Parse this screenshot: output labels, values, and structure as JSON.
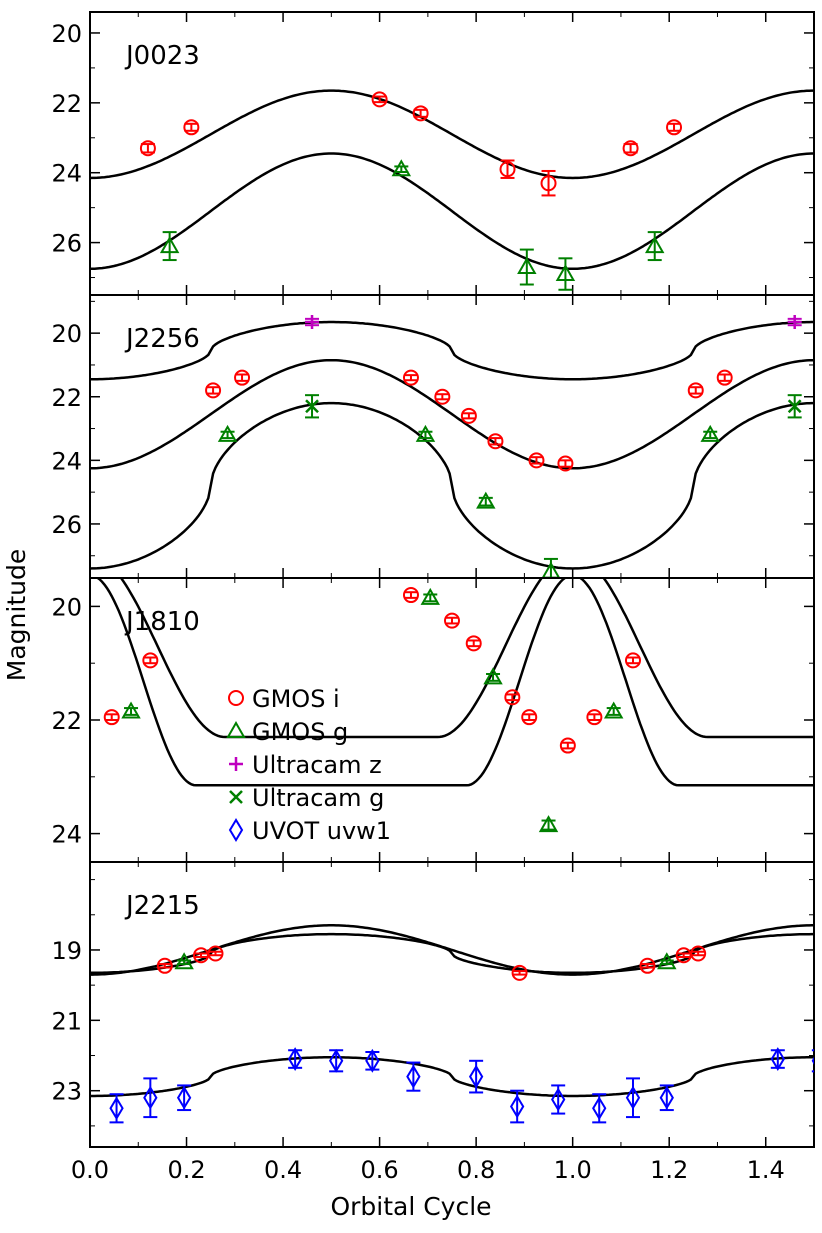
{
  "chart_data": {
    "type": "scatter",
    "xlabel": "Orbital Cycle",
    "ylabel": "Magnitude",
    "xlim": [
      0.0,
      1.5
    ],
    "x_ticks": [
      0.0,
      0.2,
      0.4,
      0.6,
      0.8,
      1.0,
      1.2,
      1.4
    ],
    "x_tick_labels": [
      "0.0",
      "0.2",
      "0.4",
      "0.6",
      "0.8",
      "1.0",
      "1.2",
      "1.4"
    ],
    "grid": false,
    "legend": {
      "placement": "inside third panel, lower-left",
      "entries": [
        {
          "label": "GMOS i",
          "marker": "circle",
          "color": "#ff0000"
        },
        {
          "label": "GMOS g",
          "marker": "triangle",
          "color": "#008000"
        },
        {
          "label": "Ultracam z",
          "marker": "plus",
          "color": "#bf00bf"
        },
        {
          "label": "Ultracam g",
          "marker": "x",
          "color": "#008000"
        },
        {
          "label": "UVOT uvw1",
          "marker": "diamond",
          "color": "#0000ff"
        }
      ]
    },
    "panels": [
      {
        "name": "J0023",
        "ylim": [
          27.5,
          19.4
        ],
        "y_ticks": [
          20,
          22,
          24,
          26
        ],
        "y_tick_labels": [
          "20",
          "22",
          "24",
          "26"
        ],
        "curves": [
          {
            "mean": 22.9,
            "amp": 1.25,
            "shape": "cos"
          },
          {
            "mean": 25.1,
            "amp": 1.65,
            "shape": "cos"
          }
        ],
        "series": [
          {
            "name": "GMOS i",
            "marker": "circle",
            "color": "#ff0000",
            "x": [
              0.12,
              0.21,
              0.6,
              0.685,
              0.865,
              0.95,
              1.12,
              1.21
            ],
            "y": [
              23.3,
              22.7,
              21.9,
              22.3,
              23.9,
              24.3,
              23.3,
              22.7
            ],
            "err": [
              0.12,
              0.1,
              0.08,
              0.1,
              0.25,
              0.35,
              0.12,
              0.1
            ]
          },
          {
            "name": "GMOS g",
            "marker": "triangle",
            "color": "#008000",
            "x": [
              0.165,
              0.645,
              0.905,
              0.985,
              1.17
            ],
            "y": [
              26.1,
              23.9,
              26.7,
              26.9,
              26.1
            ],
            "err": [
              0.4,
              0.08,
              0.5,
              0.45,
              0.4
            ]
          }
        ]
      },
      {
        "name": "J2256",
        "ylim": [
          27.7,
          18.8
        ],
        "y_ticks": [
          20,
          22,
          24,
          26
        ],
        "y_tick_labels": [
          "20",
          "22",
          "24",
          "26"
        ],
        "curves": [
          {
            "mean": 20.55,
            "amp": 0.9,
            "shape": "flat"
          },
          {
            "mean": 22.55,
            "amp": 1.7,
            "shape": "cos"
          },
          {
            "mean": 24.8,
            "amp": 2.6,
            "shape": "flat"
          }
        ],
        "series": [
          {
            "name": "GMOS i",
            "marker": "circle",
            "color": "#ff0000",
            "x": [
              0.255,
              0.315,
              0.665,
              0.73,
              0.785,
              0.84,
              0.925,
              0.985,
              1.255,
              1.315
            ],
            "y": [
              21.8,
              21.4,
              21.4,
              22.0,
              22.6,
              23.4,
              24.0,
              24.1,
              21.8,
              21.4
            ],
            "err": [
              0.1,
              0.1,
              0.08,
              0.08,
              0.08,
              0.1,
              0.1,
              0.1,
              0.1,
              0.1
            ]
          },
          {
            "name": "GMOS g",
            "marker": "triangle",
            "color": "#008000",
            "x": [
              0.285,
              0.695,
              0.82,
              0.955,
              1.285
            ],
            "y": [
              23.2,
              23.2,
              25.3,
              27.5,
              23.2
            ],
            "err": [
              0.1,
              0.1,
              0.12,
              0.4,
              0.1
            ]
          },
          {
            "name": "Ultracam z",
            "marker": "plus",
            "color": "#bf00bf",
            "x": [
              0.46,
              1.46
            ],
            "y": [
              19.65,
              19.65
            ],
            "err": [
              0.1,
              0.1
            ]
          },
          {
            "name": "Ultracam g",
            "marker": "x",
            "color": "#008000",
            "x": [
              0.46,
              1.46
            ],
            "y": [
              22.3,
              22.3
            ],
            "err": [
              0.35,
              0.35
            ]
          }
        ]
      },
      {
        "name": "J1810",
        "ylim": [
          24.5,
          19.5
        ],
        "y_ticks": [
          20,
          22,
          24
        ],
        "y_tick_labels": [
          "20",
          "22",
          "24"
        ],
        "curves": [
          {
            "mean": 20.7,
            "amp": 1.6,
            "shape": "eclipse-wide"
          },
          {
            "mean": 21.3,
            "amp": 1.85,
            "shape": "eclipse-narrow"
          }
        ],
        "series": [
          {
            "name": "GMOS i",
            "marker": "circle",
            "color": "#ff0000",
            "x": [
              0.045,
              0.125,
              0.665,
              0.75,
              0.795,
              0.875,
              0.91,
              0.99,
              1.045,
              1.125
            ],
            "y": [
              21.95,
              20.95,
              19.8,
              20.25,
              20.65,
              21.6,
              21.95,
              22.45,
              21.95,
              20.95
            ],
            "err": [
              0.05,
              0.05,
              0.05,
              0.05,
              0.05,
              0.05,
              0.05,
              0.05,
              0.05,
              0.05
            ]
          },
          {
            "name": "GMOS g",
            "marker": "triangle",
            "color": "#008000",
            "x": [
              0.085,
              0.705,
              0.835,
              0.95,
              1.085
            ],
            "y": [
              21.85,
              19.85,
              21.25,
              23.85,
              21.85
            ],
            "err": [
              0.06,
              0.06,
              0.06,
              0.08,
              0.06
            ]
          }
        ]
      },
      {
        "name": "J2215",
        "ylim": [
          24.6,
          16.5
        ],
        "y_ticks": [
          19,
          21,
          23
        ],
        "y_tick_labels": [
          "19",
          "21",
          "23"
        ],
        "curves": [
          {
            "mean": 19.0,
            "amp": 0.7,
            "shape": "cos"
          },
          {
            "mean": 19.1,
            "amp": 0.55,
            "shape": "flat"
          },
          {
            "mean": 22.6,
            "amp": 0.55,
            "shape": "flat"
          }
        ],
        "series": [
          {
            "name": "GMOS i",
            "marker": "circle",
            "color": "#ff0000",
            "x": [
              0.155,
              0.23,
              0.26,
              0.89,
              1.155,
              1.23,
              1.26
            ],
            "y": [
              19.45,
              19.15,
              19.1,
              19.65,
              19.45,
              19.15,
              19.1
            ],
            "err": [
              0.05,
              0.05,
              0.05,
              0.05,
              0.05,
              0.05,
              0.05
            ]
          },
          {
            "name": "GMOS g",
            "marker": "triangle",
            "color": "#008000",
            "x": [
              0.195,
              1.195
            ],
            "y": [
              19.35,
              19.35
            ],
            "err": [
              0.05,
              0.05
            ]
          },
          {
            "name": "UVOT uvw1",
            "marker": "diamond",
            "color": "#0000ff",
            "x": [
              0.055,
              0.125,
              0.195,
              0.425,
              0.51,
              0.585,
              0.67,
              0.8,
              0.885,
              0.97,
              1.055,
              1.125,
              1.195,
              1.425,
              1.51
            ],
            "y": [
              23.5,
              23.2,
              23.2,
              22.1,
              22.15,
              22.15,
              22.6,
              22.6,
              23.45,
              23.25,
              23.5,
              23.2,
              23.2,
              22.1,
              22.15
            ],
            "err": [
              0.4,
              0.55,
              0.35,
              0.25,
              0.3,
              0.25,
              0.4,
              0.45,
              0.45,
              0.4,
              0.4,
              0.55,
              0.35,
              0.25,
              0.3
            ]
          }
        ]
      }
    ]
  }
}
